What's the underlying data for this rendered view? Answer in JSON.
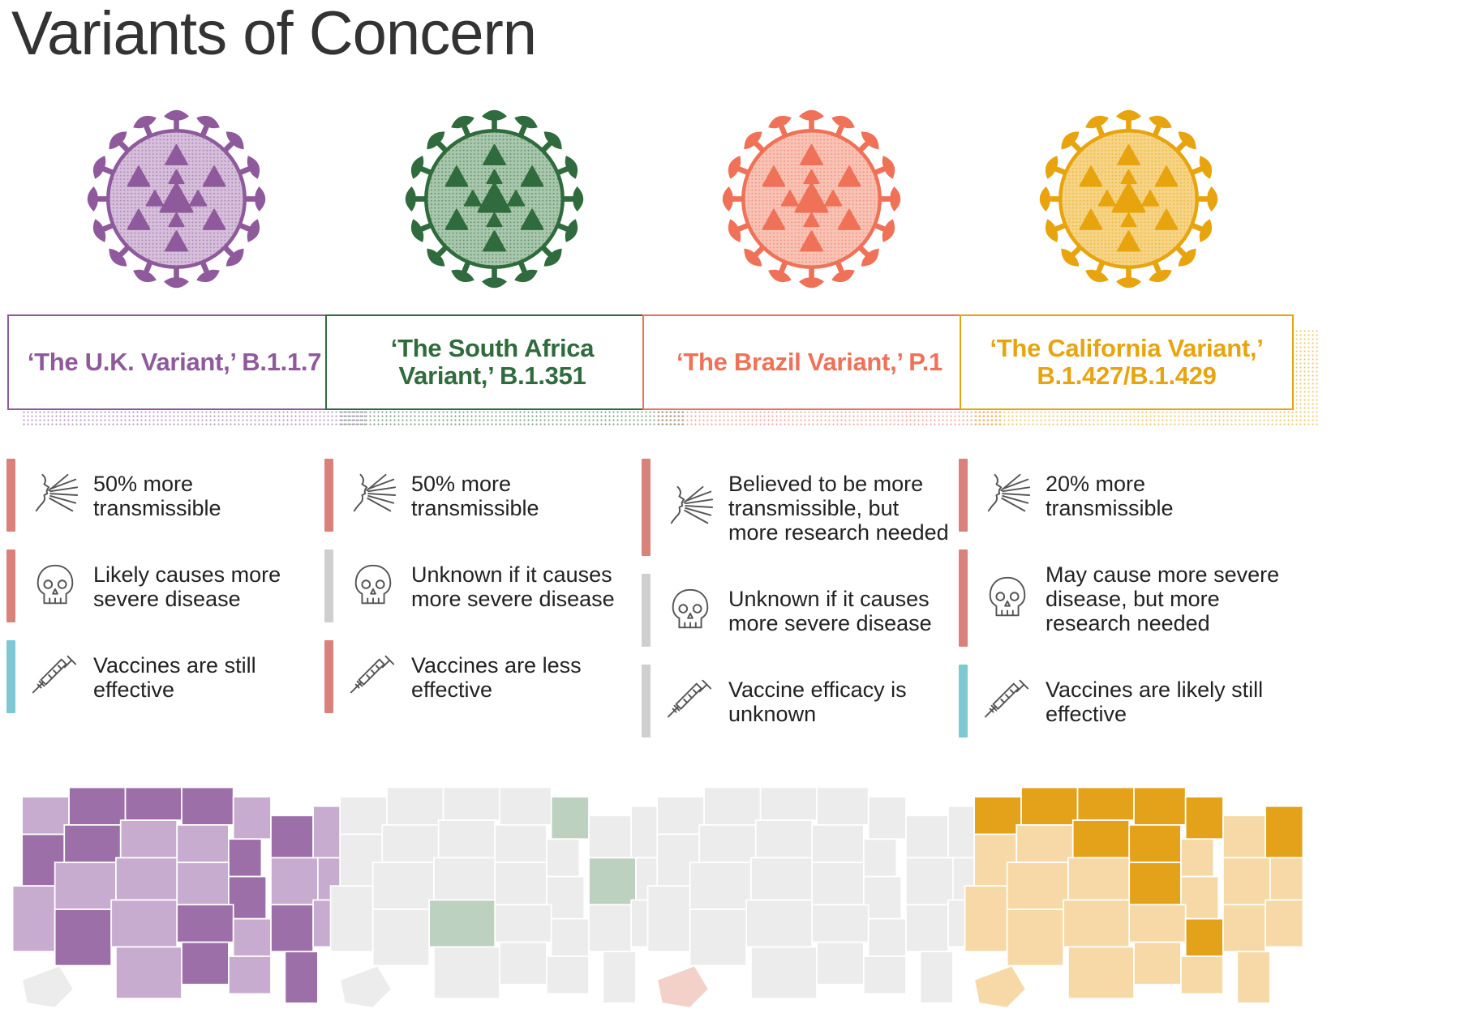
{
  "title": "Variants of Concern",
  "colors": {
    "bar_red": "#d9827c",
    "bar_gray": "#cfcfcf",
    "bar_blue": "#7ec8d4",
    "map_default": "#ebebeb"
  },
  "icons": {
    "transmission": "transmission-icon",
    "severity": "skull-icon",
    "vaccine": "syringe-icon"
  },
  "variants": [
    {
      "label": "‘The U.K. Variant,’ B.1.1.7",
      "accent": "#8e5a9b",
      "light": "#d6bfdb",
      "map_main": "#c8acd0",
      "map_strong": "#9d6fa8",
      "traits": [
        {
          "text": "50% more\ntransmissible",
          "bar": "#d9827c"
        },
        {
          "text": "Likely causes more\nsevere disease",
          "bar": "#d9827c"
        },
        {
          "text": "Vaccines are still\neffective",
          "bar": "#7ec8d4"
        }
      ]
    },
    {
      "label": "‘The South Africa\nVariant,’ B.1.351",
      "accent": "#2f6b3d",
      "light": "#a9c7ad",
      "map_main": "#ececec",
      "map_strong": "#bcd1bf",
      "traits": [
        {
          "text": "50% more\ntransmissible",
          "bar": "#d9827c"
        },
        {
          "text": "Unknown if it causes\nmore severe disease",
          "bar": "#cfcfcf"
        },
        {
          "text": "Vaccines are less\neffective",
          "bar": "#d9827c"
        }
      ]
    },
    {
      "label": "‘The Brazil Variant,’ P.1",
      "accent": "#ef7158",
      "light": "#f8c3b5",
      "map_main": "#ececec",
      "map_strong": "#f3d0c8",
      "traits": [
        {
          "text": "Believed to be more\ntransmissible, but\nmore research needed",
          "bar": "#d9827c"
        },
        {
          "text": "Unknown if it causes\nmore severe disease",
          "bar": "#cfcfcf"
        },
        {
          "text": "Vaccine efficacy is\nunknown",
          "bar": "#cfcfcf"
        }
      ]
    },
    {
      "label": "‘The California Variant,’\nB.1.427/B.1.429",
      "accent": "#e8a40e",
      "light": "#f6d486",
      "map_main": "#f6d9a6",
      "map_strong": "#e4a21a",
      "traits": [
        {
          "text": "20% more\ntransmissible",
          "bar": "#d9827c"
        },
        {
          "text": "May cause more severe\ndisease, but more\nresearch needed",
          "bar": "#d9827c"
        },
        {
          "text": "Vaccines are likely still\neffective",
          "bar": "#7ec8d4"
        }
      ]
    }
  ]
}
